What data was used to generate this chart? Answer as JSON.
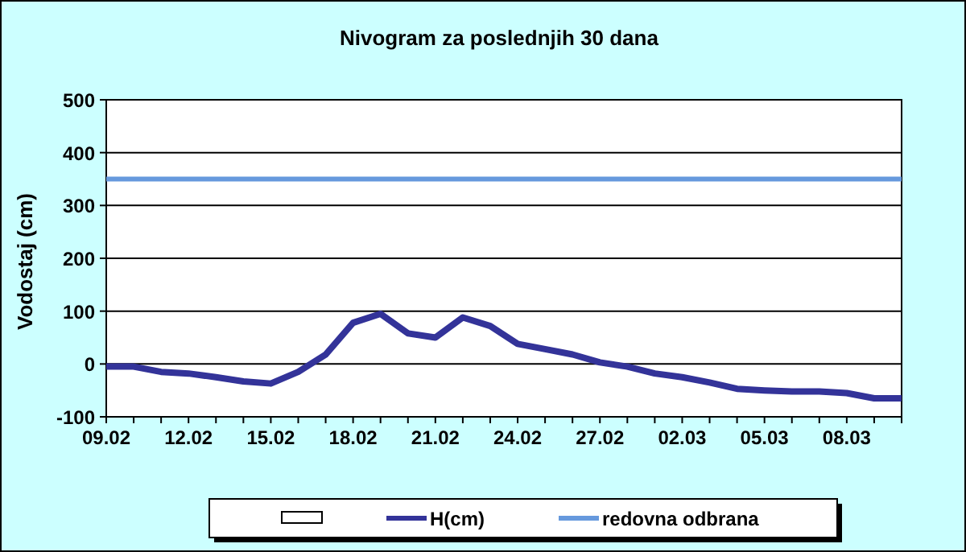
{
  "chart_data": {
    "type": "line",
    "title": "Nivogram za poslednjih 30 dana",
    "ylabel": "Vodostaj (cm)",
    "categories": [
      "09.02",
      null,
      null,
      "12.02",
      null,
      null,
      "15.02",
      null,
      null,
      "18.02",
      null,
      null,
      "21.02",
      null,
      null,
      "24.02",
      null,
      null,
      "27.02",
      null,
      null,
      "02.03",
      null,
      null,
      "05.03",
      null,
      null,
      "08.03",
      null,
      null
    ],
    "series": [
      {
        "name": "H(cm)",
        "color": "#333399",
        "values": [
          -5,
          -5,
          -15,
          -18,
          -25,
          -33,
          -37,
          -15,
          18,
          78,
          95,
          58,
          50,
          88,
          72,
          38,
          28,
          18,
          3,
          -5,
          -18,
          -25,
          -35,
          -47,
          -50,
          -52,
          -52,
          -55,
          -65,
          -65
        ]
      }
    ],
    "ref_lines": [
      {
        "axis": "y",
        "value": 350,
        "label": "redovna odbrana",
        "color": "#6699dd"
      }
    ],
    "ylim": [
      -100,
      500
    ],
    "yticks": [
      -100,
      0,
      100,
      200,
      300,
      400,
      500
    ],
    "grid": "y",
    "legend": "bottom",
    "marker": "none",
    "line_style": "solid"
  }
}
